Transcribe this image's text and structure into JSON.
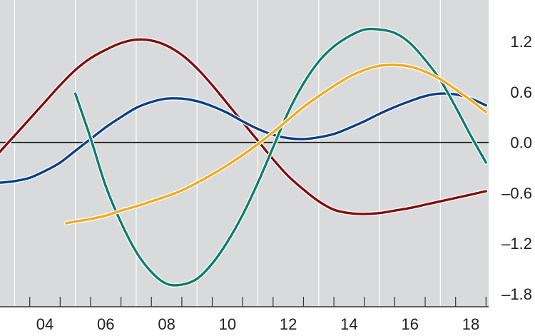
{
  "chart_data": {
    "type": "line",
    "title": "",
    "xlabel": "",
    "ylabel": "",
    "xlim": [
      2002.5,
      2018.7
    ],
    "ylim": [
      -1.85,
      1.45
    ],
    "x_ticks": [
      2004,
      2006,
      2008,
      2010,
      2012,
      2014,
      2016,
      2018
    ],
    "x_tick_labels": [
      "04",
      "06",
      "08",
      "10",
      "12",
      "14",
      "16",
      "18"
    ],
    "y_ticks": [
      1.2,
      0.6,
      0.0,
      -0.6,
      -1.2,
      -1.8
    ],
    "y_tick_labels": [
      "1.2",
      "0.6",
      "0.0",
      "–0.6",
      "–1.2",
      "–1.8"
    ],
    "zero_line": 0.0,
    "grid": "vertical",
    "background": "#d9dadb",
    "series": [
      {
        "color": "#7e0f12",
        "x": [
          2002.5,
          2003.0,
          2003.5,
          2004.0,
          2004.5,
          2005.0,
          2005.5,
          2006.0,
          2006.5,
          2007.0,
          2007.5,
          2008.0,
          2008.5,
          2009.0,
          2009.5,
          2010.0,
          2010.5,
          2011.0,
          2011.5,
          2012.0,
          2012.5,
          2013.0,
          2013.5,
          2014.0,
          2014.5,
          2015.0,
          2015.5,
          2016.0,
          2016.5,
          2017.0,
          2017.5,
          2018.0,
          2018.5
        ],
        "y": [
          -0.12,
          0.08,
          0.28,
          0.48,
          0.68,
          0.86,
          1.0,
          1.1,
          1.18,
          1.22,
          1.21,
          1.15,
          1.04,
          0.88,
          0.68,
          0.46,
          0.24,
          0.02,
          -0.2,
          -0.4,
          -0.56,
          -0.7,
          -0.8,
          -0.84,
          -0.85,
          -0.84,
          -0.81,
          -0.78,
          -0.74,
          -0.7,
          -0.66,
          -0.62,
          -0.58
        ]
      },
      {
        "color": "#0b3f86",
        "x": [
          2002.5,
          2003.0,
          2003.5,
          2004.0,
          2004.5,
          2005.0,
          2005.5,
          2006.0,
          2006.5,
          2007.0,
          2007.5,
          2008.0,
          2008.5,
          2009.0,
          2009.5,
          2010.0,
          2010.5,
          2011.0,
          2011.5,
          2012.0,
          2012.5,
          2013.0,
          2013.5,
          2014.0,
          2014.5,
          2015.0,
          2015.5,
          2016.0,
          2016.5,
          2017.0,
          2017.5,
          2018.0,
          2018.5
        ],
        "y": [
          -0.48,
          -0.46,
          -0.42,
          -0.34,
          -0.24,
          -0.1,
          0.04,
          0.18,
          0.3,
          0.41,
          0.48,
          0.52,
          0.52,
          0.49,
          0.43,
          0.35,
          0.25,
          0.16,
          0.09,
          0.05,
          0.04,
          0.06,
          0.1,
          0.17,
          0.25,
          0.34,
          0.42,
          0.49,
          0.55,
          0.58,
          0.57,
          0.52,
          0.44
        ]
      },
      {
        "color": "#0d7d6a",
        "x": [
          2005.0,
          2005.5,
          2006.0,
          2006.5,
          2007.0,
          2007.5,
          2008.0,
          2008.5,
          2009.0,
          2009.5,
          2010.0,
          2010.5,
          2011.0,
          2011.5,
          2012.0,
          2012.5,
          2013.0,
          2013.5,
          2014.0,
          2014.5,
          2015.0,
          2015.5,
          2016.0,
          2016.5,
          2017.0,
          2017.5,
          2018.0,
          2018.5
        ],
        "y": [
          0.58,
          0.05,
          -0.52,
          -0.95,
          -1.3,
          -1.54,
          -1.68,
          -1.69,
          -1.62,
          -1.44,
          -1.18,
          -0.86,
          -0.48,
          -0.06,
          0.36,
          0.7,
          0.96,
          1.14,
          1.26,
          1.34,
          1.34,
          1.3,
          1.18,
          0.98,
          0.74,
          0.42,
          0.08,
          -0.24
        ]
      },
      {
        "color": "#f2aa1c",
        "x": [
          2004.7,
          2005.0,
          2005.5,
          2006.0,
          2006.5,
          2007.0,
          2007.5,
          2008.0,
          2008.5,
          2009.0,
          2009.5,
          2010.0,
          2010.5,
          2011.0,
          2011.5,
          2012.0,
          2012.5,
          2013.0,
          2013.5,
          2014.0,
          2014.5,
          2015.0,
          2015.5,
          2016.0,
          2016.5,
          2017.0,
          2017.5,
          2018.0,
          2018.5
        ],
        "y": [
          -0.96,
          -0.94,
          -0.91,
          -0.87,
          -0.81,
          -0.76,
          -0.7,
          -0.64,
          -0.57,
          -0.48,
          -0.38,
          -0.27,
          -0.15,
          -0.02,
          0.12,
          0.27,
          0.42,
          0.55,
          0.67,
          0.78,
          0.86,
          0.91,
          0.92,
          0.9,
          0.84,
          0.75,
          0.63,
          0.5,
          0.36
        ]
      }
    ]
  }
}
